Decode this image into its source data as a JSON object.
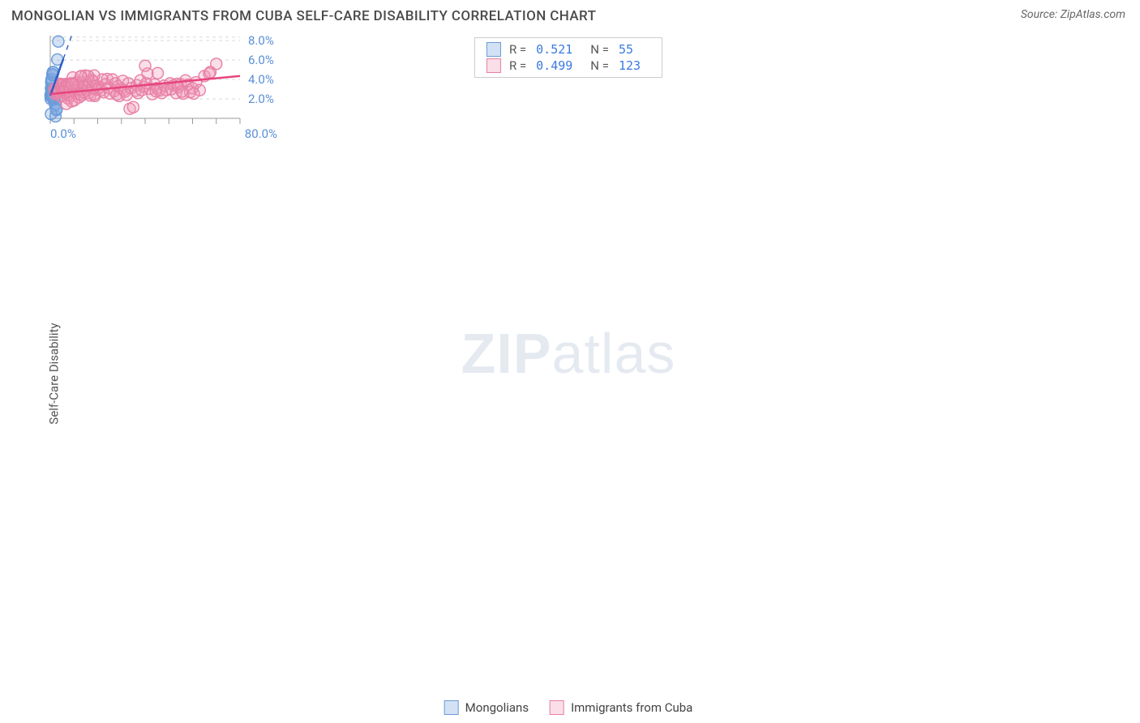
{
  "header": {
    "title": "MONGOLIAN VS IMMIGRANTS FROM CUBA SELF-CARE DISABILITY CORRELATION CHART",
    "source_prefix": "Source: ",
    "source_name": "ZipAtlas.com"
  },
  "ylabel": "Self-Care Disability",
  "watermark": {
    "bold": "ZIP",
    "rest": "atlas"
  },
  "chart": {
    "type": "scatter",
    "background_color": "#ffffff",
    "grid_color": "#d9d9d9",
    "axis_line_color": "#999999",
    "tick_label_color": "#5a8fd6",
    "tick_fontsize": 15,
    "xlim": [
      0,
      80
    ],
    "ylim": [
      0,
      8.5
    ],
    "x_ticks": [
      0,
      10,
      20,
      30,
      40,
      50,
      60,
      70,
      80
    ],
    "x_tick_labels": [
      "0.0%",
      "",
      "",
      "",
      "",
      "",
      "",
      "",
      "80.0%"
    ],
    "y_gridlines": [
      2,
      4,
      6,
      8
    ],
    "y_tick_labels": [
      "2.0%",
      "4.0%",
      "6.0%",
      "8.0%"
    ],
    "marker_radius": 7,
    "marker_stroke_width": 1.4,
    "regression_line_width": 2.5,
    "series": [
      {
        "name": "Mongolians",
        "fill": "rgba(130,170,225,0.35)",
        "stroke": "#6b9bd8",
        "line_color": "#2d5fc4",
        "r": "0.521",
        "n": "55",
        "regression": {
          "x1": 0,
          "y1": 2.35,
          "x2": 9.0,
          "y2": 8.5,
          "dash_from_x": 5.5
        },
        "points": [
          [
            0.1,
            2.35
          ],
          [
            0.2,
            2.3
          ],
          [
            0.3,
            2.5
          ],
          [
            0.4,
            2.4
          ],
          [
            0.5,
            2.6
          ],
          [
            0.6,
            2.2
          ],
          [
            0.7,
            3.0
          ],
          [
            0.3,
            3.1
          ],
          [
            0.5,
            2.8
          ],
          [
            0.8,
            2.15
          ],
          [
            0.9,
            2.5
          ],
          [
            1.0,
            2.7
          ],
          [
            1.1,
            2.3
          ],
          [
            1.1,
            2.6
          ],
          [
            1.2,
            2.9
          ],
          [
            1.3,
            2.0
          ],
          [
            1.4,
            1.9
          ],
          [
            1.5,
            2.2
          ],
          [
            1.6,
            1.9
          ],
          [
            1.7,
            2.55
          ],
          [
            1.8,
            2.35
          ],
          [
            2.0,
            2.1
          ],
          [
            2.1,
            1.35
          ],
          [
            2.2,
            0.2
          ],
          [
            2.3,
            1.5
          ],
          [
            2.5,
            0.85
          ],
          [
            2.6,
            0.85
          ],
          [
            2.7,
            0.95
          ],
          [
            0.4,
            3.7
          ],
          [
            0.5,
            3.95
          ],
          [
            0.6,
            4.05
          ],
          [
            0.7,
            3.8
          ],
          [
            0.9,
            4.55
          ],
          [
            1.0,
            4.45
          ],
          [
            1.1,
            4.75
          ],
          [
            1.3,
            4.75
          ],
          [
            0.3,
            0.45
          ],
          [
            1.7,
            2.65
          ],
          [
            1.8,
            2.85
          ],
          [
            1.9,
            2.9
          ],
          [
            2.0,
            2.5
          ],
          [
            0.2,
            2.0
          ],
          [
            0.25,
            2.45
          ],
          [
            0.35,
            2.65
          ],
          [
            0.45,
            2.2
          ],
          [
            0.55,
            2.35
          ],
          [
            0.65,
            2.55
          ],
          [
            0.75,
            2.4
          ],
          [
            0.85,
            2.7
          ],
          [
            0.95,
            2.45
          ],
          [
            1.05,
            2.85
          ],
          [
            3.0,
            6.05
          ],
          [
            3.4,
            7.9
          ],
          [
            1.15,
            2.15
          ],
          [
            1.25,
            2.4
          ]
        ]
      },
      {
        "name": "Immigrants from Cuba",
        "fill": "rgba(240,150,180,0.3)",
        "stroke": "#e87fa5",
        "line_color": "#e6457e",
        "r": "0.499",
        "n": "123",
        "regression": {
          "x1": 0,
          "y1": 2.5,
          "x2": 80,
          "y2": 4.35,
          "dash_from_x": 999
        },
        "points": [
          [
            1.8,
            3.0
          ],
          [
            2.2,
            2.5
          ],
          [
            2.5,
            3.05
          ],
          [
            2.8,
            2.8
          ],
          [
            3.0,
            2.6
          ],
          [
            3.3,
            2.95
          ],
          [
            3.6,
            2.7
          ],
          [
            3.9,
            3.4
          ],
          [
            4.1,
            3.55
          ],
          [
            4.5,
            2.25
          ],
          [
            4.7,
            3.1
          ],
          [
            5.0,
            3.45
          ],
          [
            5.1,
            2.7
          ],
          [
            5.5,
            3.5
          ],
          [
            5.7,
            2.9
          ],
          [
            5.9,
            3.3
          ],
          [
            6.2,
            2.85
          ],
          [
            6.5,
            3.15
          ],
          [
            6.8,
            1.5
          ],
          [
            7.0,
            3.55
          ],
          [
            7.3,
            2.4
          ],
          [
            7.5,
            2.05
          ],
          [
            7.8,
            3.5
          ],
          [
            8.0,
            2.8
          ],
          [
            8.3,
            3.1
          ],
          [
            8.5,
            2.3
          ],
          [
            8.8,
            3.6
          ],
          [
            9.0,
            1.75
          ],
          [
            9.5,
            4.2
          ],
          [
            9.8,
            2.9
          ],
          [
            10.1,
            1.85
          ],
          [
            10.5,
            3.55
          ],
          [
            10.8,
            2.55
          ],
          [
            11.0,
            3.7
          ],
          [
            11.5,
            2.95
          ],
          [
            11.8,
            3.4
          ],
          [
            12.1,
            2.15
          ],
          [
            12.5,
            2.5
          ],
          [
            12.8,
            4.3
          ],
          [
            13.2,
            2.35
          ],
          [
            13.5,
            3.0
          ],
          [
            13.8,
            3.7
          ],
          [
            14.1,
            2.7
          ],
          [
            14.5,
            3.45
          ],
          [
            14.8,
            4.4
          ],
          [
            15.5,
            2.85
          ],
          [
            15.8,
            3.25
          ],
          [
            16.2,
            2.6
          ],
          [
            16.5,
            3.75
          ],
          [
            16.8,
            2.35
          ],
          [
            17.5,
            3.95
          ],
          [
            17.8,
            3.05
          ],
          [
            18.1,
            3.8
          ],
          [
            18.5,
            2.45
          ],
          [
            18.8,
            2.3
          ],
          [
            19.5,
            3.35
          ],
          [
            19.8,
            2.95
          ],
          [
            20.6,
            3.15
          ],
          [
            21.5,
            2.9
          ],
          [
            22.0,
            4.0
          ],
          [
            22.5,
            2.7
          ],
          [
            23.3,
            3.5
          ],
          [
            24.0,
            4.05
          ],
          [
            24.5,
            3.15
          ],
          [
            25.2,
            2.55
          ],
          [
            26.2,
            4.0
          ],
          [
            27.0,
            2.8
          ],
          [
            27.5,
            3.6
          ],
          [
            28.0,
            2.45
          ],
          [
            28.5,
            3.3
          ],
          [
            29.0,
            2.3
          ],
          [
            30.0,
            3.05
          ],
          [
            30.6,
            3.85
          ],
          [
            31.0,
            2.9
          ],
          [
            31.5,
            2.75
          ],
          [
            32.2,
            2.4
          ],
          [
            33.0,
            3.6
          ],
          [
            33.5,
            0.98
          ],
          [
            34.0,
            3.1
          ],
          [
            35.0,
            1.15
          ],
          [
            36.0,
            2.85
          ],
          [
            36.5,
            3.4
          ],
          [
            37.0,
            2.6
          ],
          [
            38.0,
            3.9
          ],
          [
            38.5,
            2.9
          ],
          [
            39.5,
            3.25
          ],
          [
            40.0,
            5.4
          ],
          [
            40.5,
            3.6
          ],
          [
            41.0,
            4.6
          ],
          [
            42.0,
            3.05
          ],
          [
            43.0,
            2.5
          ],
          [
            44.0,
            3.5
          ],
          [
            45.0,
            3.1
          ],
          [
            45.3,
            4.65
          ],
          [
            46.0,
            2.85
          ],
          [
            47.0,
            2.6
          ],
          [
            48.0,
            3.35
          ],
          [
            49.0,
            2.9
          ],
          [
            50.5,
            3.6
          ],
          [
            52.0,
            3.4
          ],
          [
            53.0,
            2.6
          ],
          [
            54.0,
            3.2
          ],
          [
            55.0,
            3.5
          ],
          [
            56.0,
            2.55
          ],
          [
            57.0,
            3.9
          ],
          [
            58.0,
            3.45
          ],
          [
            59.0,
            2.7
          ],
          [
            60.0,
            3.1
          ],
          [
            61.5,
            3.7
          ],
          [
            63.0,
            2.9
          ],
          [
            65.0,
            4.35
          ],
          [
            67.0,
            4.6
          ],
          [
            67.5,
            4.75
          ],
          [
            70.0,
            5.6
          ],
          [
            44.5,
            2.8
          ],
          [
            51.0,
            3.0
          ],
          [
            53.5,
            3.55
          ],
          [
            55.5,
            2.75
          ],
          [
            60.5,
            2.55
          ],
          [
            18.5,
            4.4
          ],
          [
            16.0,
            4.35
          ],
          [
            13.0,
            4.35
          ],
          [
            9.2,
            3.5
          ]
        ]
      }
    ]
  },
  "legend_bottom": [
    {
      "label": "Mongolians",
      "series": 0
    },
    {
      "label": "Immigrants from Cuba",
      "series": 1
    }
  ]
}
